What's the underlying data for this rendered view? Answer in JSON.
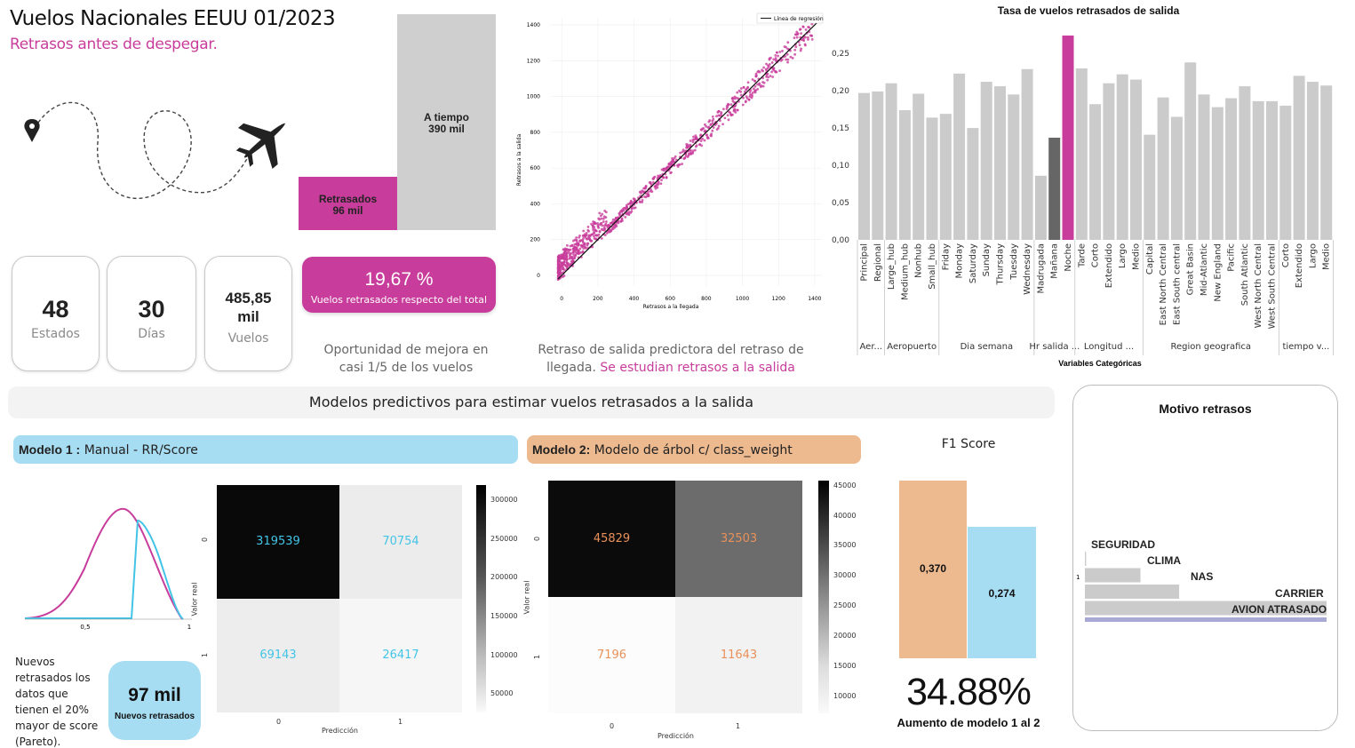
{
  "header": {
    "title": "Vuelos Nacionales EEUU 01/2023",
    "subtitle": "Retrasos antes de despegar."
  },
  "icons": {
    "pin": "location-pin-icon",
    "plane": "airplane-icon"
  },
  "colors": {
    "accent": "#c83c9b",
    "gray": "#c8c8c8",
    "peach": "#edb98f",
    "sky": "#a7ddf2",
    "lavender": "#a9a9d6"
  },
  "share_bars": {
    "ontime_label": "A tiempo",
    "ontime_value": "390 mil",
    "delayed_label": "Retrasados",
    "delayed_value": "96 mil",
    "ontime": 390,
    "delayed": 96
  },
  "kpis": {
    "states_value": "48",
    "states_label": "Estados",
    "days_value": "30",
    "days_label": "Días",
    "flights_value": "485,85 mil",
    "flights_label": "Vuelos",
    "pct_value": "19,67 %",
    "pct_label": "Vuelos retrasados respecto del total"
  },
  "captions": {
    "opportunity": "Oportunidad de mejora en casi 1/5 de los vuelos",
    "scatter_caption_a": "Retraso de salida predictora del retraso de llegada.",
    "scatter_caption_b": "Se estudian retrasos a la salida"
  },
  "scatter": {
    "legend": "Línea de regresión",
    "xlabel": "Retrasos a la llegada",
    "ylabel": "Retrasos a la salida",
    "xticks": [
      "0",
      "200",
      "400",
      "600",
      "800",
      "1000",
      "1200",
      "1400"
    ],
    "yticks": [
      "0",
      "200",
      "400",
      "600",
      "800",
      "1000",
      "1200",
      "1400"
    ]
  },
  "bars_chart": {
    "title": "Tasa de vuelos retrasados de salida",
    "xlabel": "Variables Categóricas",
    "yticks": [
      "0,25",
      "0,20",
      "0,15",
      "0,10",
      "0,05",
      "0,00"
    ],
    "groups": [
      "Aer...",
      "Aeropuerto",
      "Dia semana",
      "Hr salida ...",
      "Longitud ...",
      "Region geografica",
      "tiempo v..."
    ]
  },
  "chart_data": [
    {
      "type": "bar",
      "title": "Tasa de vuelos retrasados de salida",
      "xlabel": "Variables Categóricas",
      "ylim": [
        0,
        0.28
      ],
      "categories": [
        "Principal",
        "Regional",
        "Large_hub",
        "Medium_hub",
        "Nonhub",
        "Small_hub",
        "Friday",
        "Monday",
        "Saturday",
        "Sunday",
        "Thursday",
        "Tuesday",
        "Wednesday",
        "Madrugada",
        "Mañana",
        "Noche",
        "Tarde",
        "Corto",
        "Extendido",
        "Largo",
        "Medio",
        "Capital",
        "East North Central",
        "East South central",
        "Great Basin",
        "Mid-Atlantic",
        "New England",
        "Pacific",
        "South Atlantic",
        "West North Central",
        "West South Central",
        "Corto",
        "Extendido",
        "Largo",
        "Medio"
      ],
      "values": [
        0.197,
        0.199,
        0.21,
        0.174,
        0.196,
        0.164,
        0.169,
        0.223,
        0.15,
        0.212,
        0.206,
        0.195,
        0.229,
        0.086,
        0.137,
        0.274,
        0.23,
        0.182,
        0.21,
        0.222,
        0.215,
        0.141,
        0.191,
        0.165,
        0.238,
        0.195,
        0.178,
        0.19,
        0.206,
        0.186,
        0.186,
        0.18,
        0.22,
        0.212,
        0.207
      ]
    },
    {
      "type": "scatter",
      "title": "",
      "xlabel": "Retrasos a la llegada",
      "ylabel": "Retrasos a la salida",
      "xlim": [
        -60,
        1440
      ],
      "ylim": [
        -60,
        1440
      ],
      "regression": {
        "slope": 1.0,
        "intercept": 0
      }
    },
    {
      "type": "bar",
      "title": "F1 Score",
      "categories": [
        "Modelo 2",
        "Modelo 1"
      ],
      "values": [
        0.37,
        0.274
      ]
    },
    {
      "type": "bar",
      "title": "Motivo retrasos",
      "categories": [
        "SEGURIDAD",
        "CLIMA",
        "NAS",
        "CARRIER",
        "AVION ATRASADO"
      ],
      "values": [
        0.5,
        23,
        39,
        100,
        100
      ]
    }
  ],
  "banner": {
    "text": "Modelos predictivos para estimar vuelos retrasados a la salida"
  },
  "model1": {
    "title_bold": "Modelo 1 :",
    "title_rest": "Manual - RR/Score",
    "note": "Nuevos retrasados los datos que tienen el 20% mayor de score (Pareto).",
    "badge_value": "97 mil",
    "badge_label": "Nuevos retrasados",
    "curve_tick_mid": "0,5",
    "curve_tick_end": "1",
    "cm": {
      "tn": "319539",
      "fp": "70754",
      "fn": "69143",
      "tp": "26417",
      "ylabel": "Valor real",
      "xlabel": "Predicción",
      "xt0": "0",
      "xt1": "1",
      "yt0": "0",
      "yt1": "1",
      "cbar_ticks": [
        "300000",
        "250000",
        "200000",
        "150000",
        "100000",
        "50000"
      ]
    }
  },
  "model2": {
    "title_bold": "Modelo 2:",
    "title_rest": "Modelo de árbol c/ class_weight",
    "cm": {
      "tn": "45829",
      "fp": "32503",
      "fn": "7196",
      "tp": "11643",
      "ylabel": "Valor real",
      "xlabel": "Predicción",
      "xt0": "0",
      "xt1": "1",
      "yt0": "0",
      "yt1": "1",
      "cbar_ticks": [
        "45000",
        "40000",
        "35000",
        "30000",
        "25000",
        "20000",
        "15000",
        "10000"
      ]
    }
  },
  "f1": {
    "title": "F1 Score",
    "m2_value": "0,370",
    "m1_value": "0,274",
    "increase_value": "34.88%",
    "increase_label": "Aumento de modelo 1 al 2"
  },
  "motivo": {
    "title": "Motivo retrasos",
    "axis_label": "1",
    "labels": [
      "SEGURIDAD",
      "CLIMA",
      "NAS",
      "CARRIER",
      "AVION ATRASADO"
    ]
  }
}
